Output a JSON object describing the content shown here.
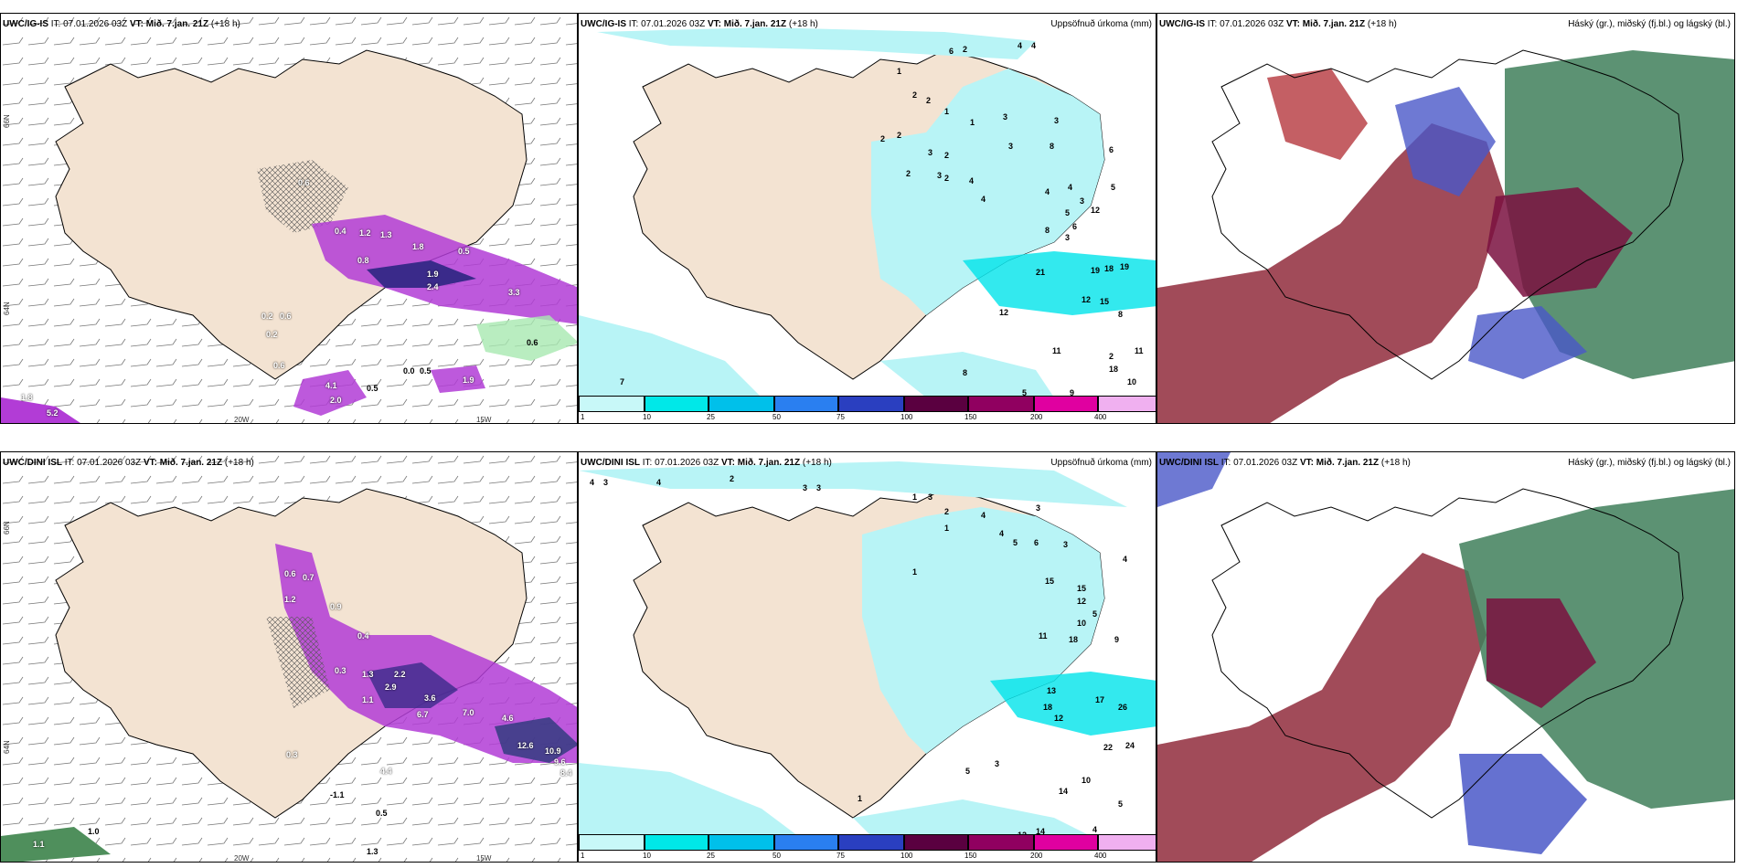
{
  "panels": {
    "p1": {
      "model": "UWC/IG-IS",
      "it_label": "IT:",
      "it": "07.01.2026 03Z",
      "vt_label": "VT:",
      "vt": "Mið. 7.jan. 21Z",
      "lead": "(+18 h)",
      "right": "",
      "values": [
        "0.4",
        "1.2",
        "1.3",
        "1.8",
        "0.8",
        "0.5",
        "1.9",
        "2.4",
        "0.6",
        "0.2",
        "0.6",
        "0.2",
        "0.6",
        "3.3",
        "0.6",
        "4.1",
        "2.0",
        "0.5",
        "0.0",
        "0.5",
        "1.9",
        "1.8",
        "5.2"
      ],
      "axis": {
        "lon_a": "20W",
        "lon_b": "15W",
        "lat_a": "66N",
        "lat_b": "64N"
      }
    },
    "p2": {
      "model": "UWC/IG-IS",
      "it_label": "IT:",
      "it": "07.01.2026 03Z",
      "vt_label": "VT:",
      "vt": "Mið. 7.jan. 21Z",
      "lead": "(+18 h)",
      "right": "Uppsöfnuð úrkoma (mm)",
      "values": [
        "6",
        "2",
        "4",
        "4",
        "1",
        "2",
        "2",
        "1",
        "1",
        "3",
        "2",
        "2",
        "3",
        "2",
        "2",
        "3",
        "2",
        "4",
        "3",
        "3",
        "8",
        "4",
        "6",
        "4",
        "4",
        "3",
        "5",
        "5",
        "3",
        "12",
        "8",
        "6",
        "21",
        "19",
        "18",
        "19",
        "12",
        "15",
        "12",
        "8",
        "11",
        "18",
        "11",
        "10",
        "7",
        "8",
        "5",
        "9",
        "2"
      ]
    },
    "p3": {
      "model": "UWC/IG-IS",
      "it_label": "IT:",
      "it": "07.01.2026 03Z",
      "vt_label": "VT:",
      "vt": "Mið. 7.jan. 21Z",
      "lead": "(+18 h)",
      "right": "Háský (gr.), miðský (fj.bl.) og lágský (bl.)"
    },
    "p4": {
      "model": "UWC/DINI ISL",
      "it_label": "IT:",
      "it": "07.01.2026 03Z",
      "vt_label": "VT:",
      "vt": "Mið. 7.jan. 21Z",
      "lead": "(+18 h)",
      "right": "",
      "values": [
        "0.6",
        "0.7",
        "1.2",
        "0.9",
        "0.4",
        "0.3",
        "1.3",
        "2.2",
        "2.9",
        "1.1",
        "3.6",
        "6.7",
        "7.0",
        "4.6",
        "12.6",
        "10.9",
        "9.6",
        "8.4",
        "0.3",
        "4.4",
        "0.5",
        "1.0",
        "1.1",
        "-1.1",
        "1.3"
      ],
      "axis": {
        "lon_a": "20W",
        "lon_b": "15W",
        "lat_a": "66N",
        "lat_b": "64N"
      }
    },
    "p5": {
      "model": "UWC/DINI ISL",
      "it_label": "IT:",
      "it": "07.01.2026 03Z",
      "vt_label": "VT:",
      "vt": "Mið. 7.jan. 21Z",
      "lead": "(+18 h)",
      "right": "Uppsöfnuð úrkoma (mm)",
      "values": [
        "4",
        "3",
        "4",
        "2",
        "3",
        "3",
        "1",
        "3",
        "2",
        "3",
        "1",
        "4",
        "4",
        "1",
        "5",
        "6",
        "3",
        "4",
        "15",
        "15",
        "12",
        "5",
        "10",
        "11",
        "18",
        "9",
        "13",
        "17",
        "26",
        "18",
        "12",
        "22",
        "24",
        "10",
        "5",
        "14",
        "14",
        "12",
        "4",
        "3",
        "5",
        "1"
      ]
    },
    "p6": {
      "model": "UWC/DINI ISL",
      "it_label": "IT:",
      "it": "07.01.2026 03Z",
      "vt_label": "VT:",
      "vt": "Mið. 7.jan. 21Z",
      "lead": "(+18 h)",
      "right": "Háský (gr.), miðský (fj.bl.) og lágský (bl.)"
    }
  },
  "legend": {
    "ticks": [
      "1",
      "10",
      "25",
      "50",
      "75",
      "100",
      "150",
      "200",
      "400"
    ],
    "colors": [
      "#c8f8f8",
      "#00e8e8",
      "#00c0ea",
      "#2a7ff0",
      "#2a3fc0",
      "#5a0040",
      "#900060",
      "#e000a0",
      "#f0b0f0"
    ]
  },
  "colors": {
    "land": "#f3e3d2",
    "precip_light": "#b8f4f6",
    "precip_mid": "#00e4ea",
    "purple": "#b23cd6",
    "green": "#4f8f5c",
    "red": "#8a1e2f",
    "blue": "#4a58c8"
  }
}
